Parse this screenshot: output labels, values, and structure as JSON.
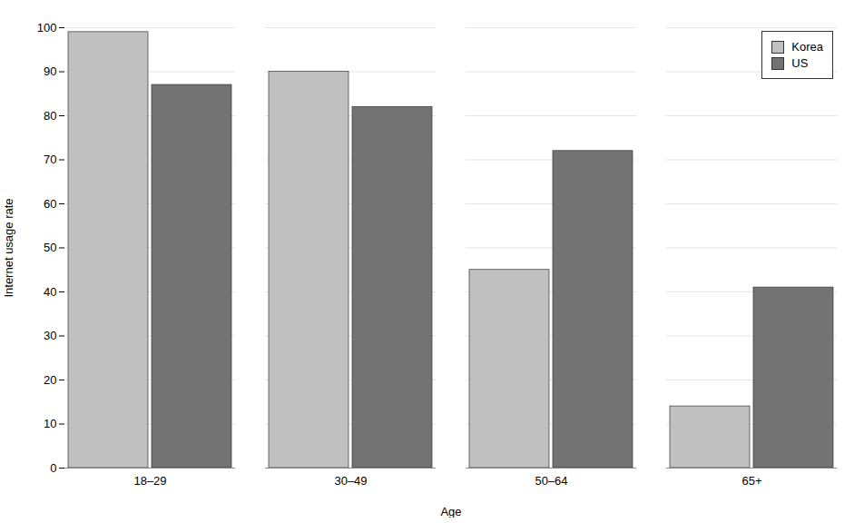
{
  "chart_data": {
    "type": "bar",
    "categories": [
      "18–29",
      "30–49",
      "50–64",
      "65+"
    ],
    "series": [
      {
        "name": "Korea",
        "color": "#c0c0c0",
        "values": [
          99,
          90,
          45,
          14
        ]
      },
      {
        "name": "US",
        "color": "#737373",
        "values": [
          87,
          82,
          72,
          41
        ]
      }
    ],
    "xlabel": "Age",
    "ylabel": "Internet usage rate",
    "ylim": [
      0,
      100
    ],
    "yticks": [
      0,
      10,
      20,
      30,
      40,
      50,
      60,
      70,
      80,
      90,
      100
    ],
    "grid": true,
    "legend": "upper right"
  }
}
